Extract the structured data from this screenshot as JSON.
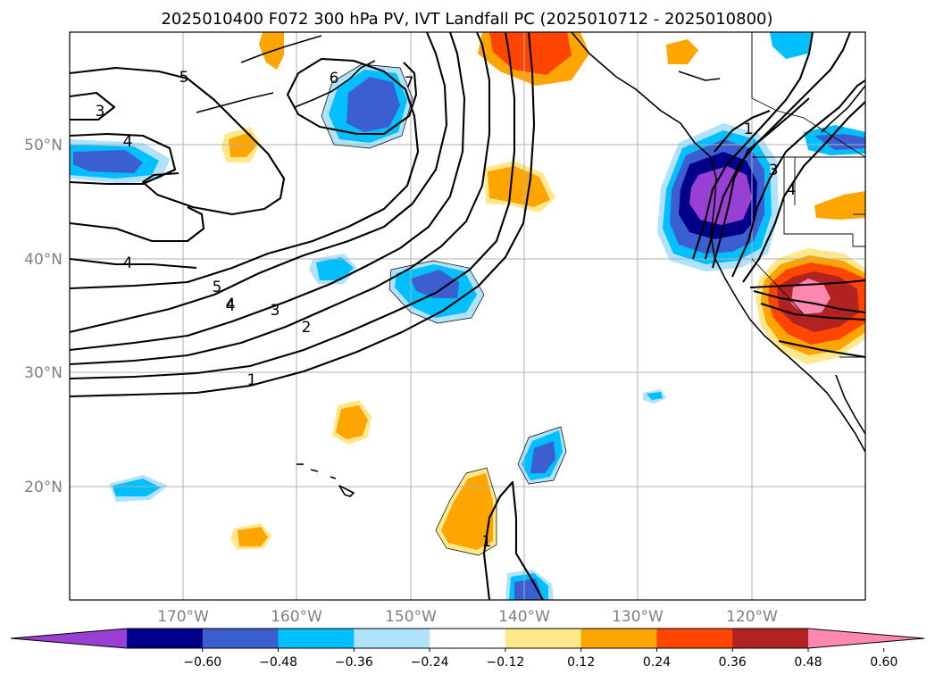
{
  "title": "2025010400 F072 300 hPa PV, IVT Landfall PC (2025010712 - 2025010800)",
  "latitude_labels": [
    "50°N",
    "40°N",
    "30°N",
    "20°N"
  ],
  "longitude_labels": [
    "170°W",
    "160°W",
    "150°W",
    "140°W",
    "130°W",
    "120°W"
  ],
  "contour_labels": [
    "3",
    "4",
    "5",
    "6",
    "7",
    "4",
    "4",
    "5",
    "4",
    "3",
    "2",
    "1",
    "1",
    "1",
    "3",
    "4"
  ],
  "colorbar": {
    "tick_labels": [
      "−0.60",
      "−0.48",
      "−0.36",
      "−0.24",
      "−0.12",
      "0.12",
      "0.24",
      "0.36",
      "0.48",
      "0.60"
    ],
    "colors": [
      "#9a3fd3",
      "#00008b",
      "#3b5fd0",
      "#00bfff",
      "#b0e2fb",
      "#ffffff",
      "#ffe88c",
      "#ffa500",
      "#ff4500",
      "#b22222",
      "#ff88b0"
    ],
    "extend": "both"
  },
  "map": {
    "extent_lon": [
      -180,
      -110
    ],
    "extent_lat": [
      10,
      60
    ],
    "gridlines": true
  }
}
